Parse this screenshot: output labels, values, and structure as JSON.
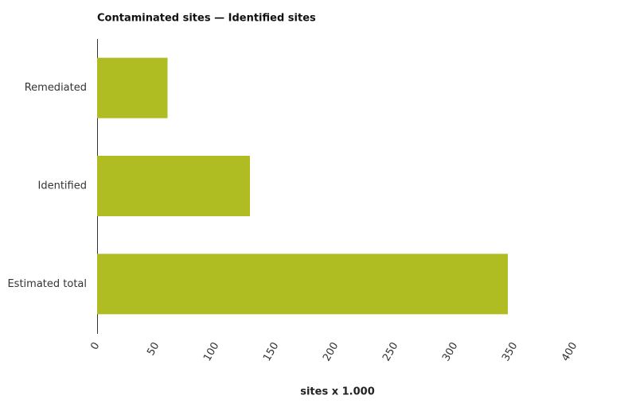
{
  "chart_data": {
    "type": "hbar",
    "title": "Contaminated sites — Identified sites",
    "categories": [
      "Remediated",
      "Identified",
      "Estimated total"
    ],
    "values": [
      59,
      128,
      344
    ],
    "color": "#afbc22",
    "xlabel": "sites x 1.000",
    "xlim": [
      0,
      400
    ],
    "xticks": [
      0,
      50,
      100,
      150,
      200,
      250,
      300,
      350,
      400
    ],
    "grid": false
  }
}
